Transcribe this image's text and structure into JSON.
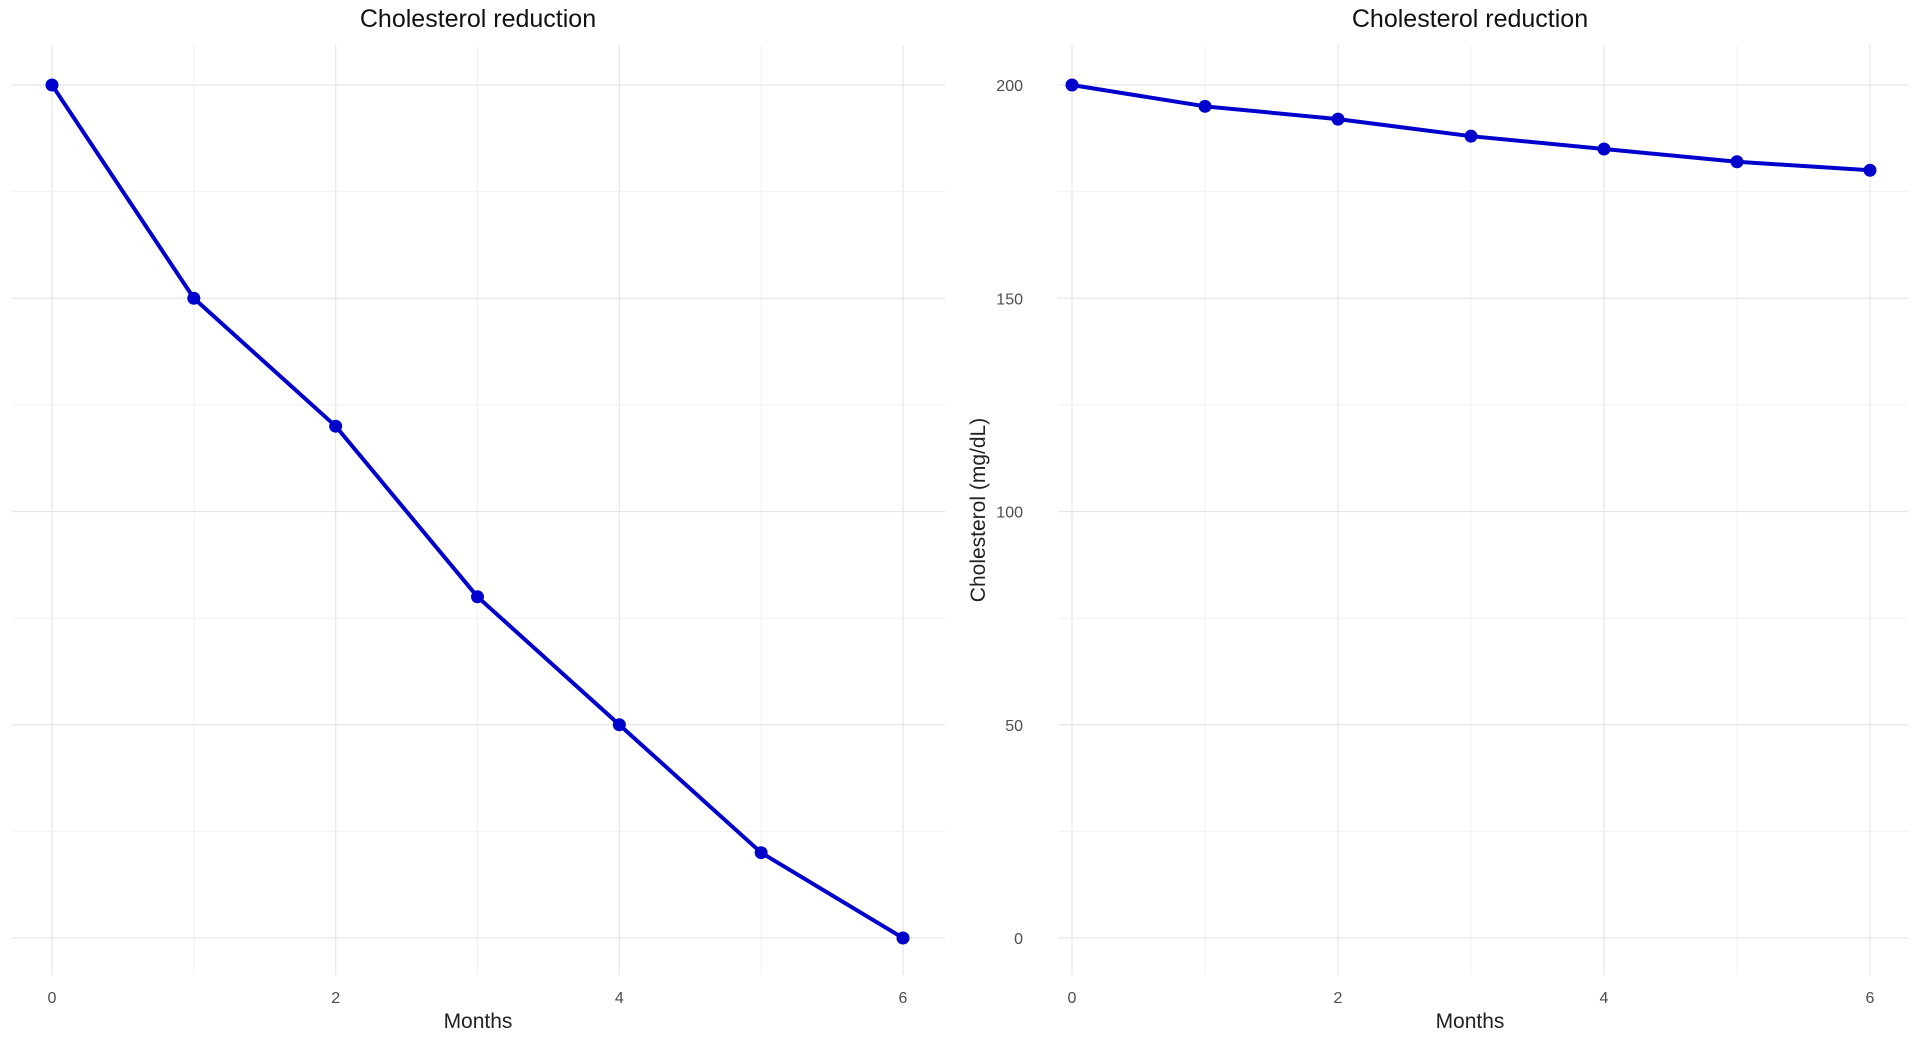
{
  "chart_data": [
    {
      "type": "line",
      "title": "Cholesterol reduction",
      "xlabel": "Months",
      "ylabel": "",
      "x": [
        0,
        1,
        2,
        3,
        4,
        5,
        6
      ],
      "series": [
        {
          "values": [
            200,
            150,
            120,
            80,
            50,
            20,
            0
          ],
          "color": "#0000cc"
        }
      ],
      "xlim": [
        0,
        6
      ],
      "ylim": [
        0,
        200
      ],
      "xticks": [
        0,
        2,
        4,
        6
      ],
      "xtick_labels": [
        "0",
        "2",
        "4",
        "6"
      ],
      "yticks": [],
      "ytick_labels": [],
      "grid": true
    },
    {
      "type": "line",
      "title": "Cholesterol reduction",
      "xlabel": "Months",
      "ylabel": "Cholesterol (mg/dL)",
      "x": [
        0,
        1,
        2,
        3,
        4,
        5,
        6
      ],
      "series": [
        {
          "values": [
            200,
            195,
            192,
            188,
            185,
            182,
            180
          ],
          "color": "#0000cc"
        }
      ],
      "xlim": [
        0,
        6
      ],
      "ylim": [
        0,
        200
      ],
      "xticks": [
        0,
        2,
        4,
        6
      ],
      "xtick_labels": [
        "0",
        "2",
        "4",
        "6"
      ],
      "yticks": [
        0,
        50,
        100,
        150,
        200
      ],
      "ytick_labels": [
        "0",
        "50",
        "100",
        "150",
        "200"
      ],
      "grid": true
    }
  ]
}
